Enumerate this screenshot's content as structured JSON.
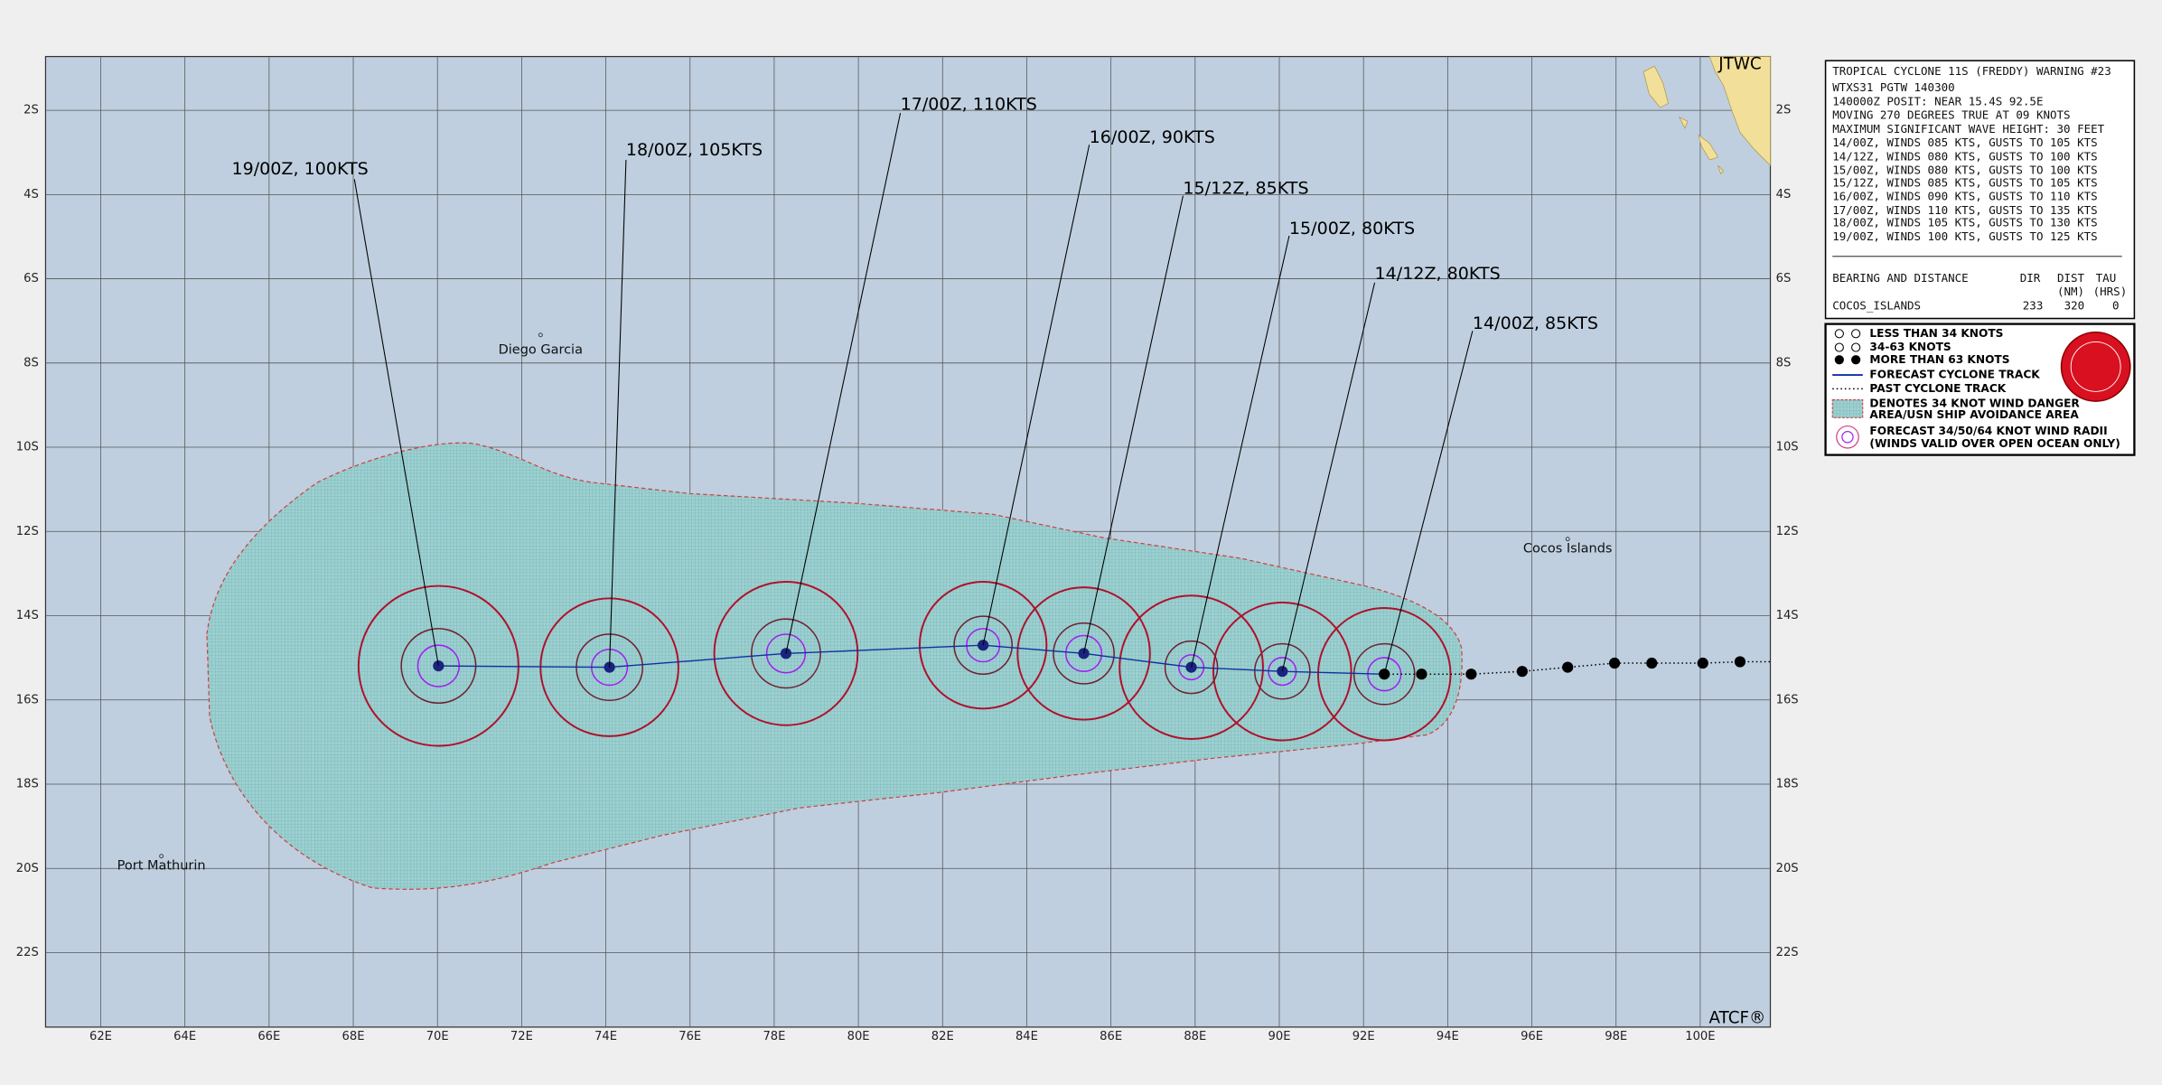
{
  "header": {
    "agency": "JTWC",
    "trademark": "ATCF®"
  },
  "map": {
    "lon_labels": [
      "62E",
      "64E",
      "66E",
      "68E",
      "70E",
      "72E",
      "74E",
      "76E",
      "78E",
      "80E",
      "82E",
      "84E",
      "86E",
      "88E",
      "90E",
      "92E",
      "94E",
      "96E",
      "98E",
      "100E"
    ],
    "lat_labels": [
      "2S",
      "4S",
      "6S",
      "8S",
      "10S",
      "12S",
      "14S",
      "16S",
      "18S",
      "20S",
      "22S"
    ],
    "places": [
      "Diego Garcia",
      "Cocos Islands",
      "Port Mathurin"
    ]
  },
  "forecast_labels": [
    "14/00Z, 85KTS",
    "14/12Z, 80KTS",
    "15/00Z, 80KTS",
    "15/12Z, 85KTS",
    "16/00Z, 90KTS",
    "17/00Z, 110KTS",
    "18/00Z, 105KTS",
    "19/00Z, 100KTS"
  ],
  "warning": {
    "lines": [
      "TROPICAL CYCLONE 11S (FREDDY) WARNING #23",
      "WTXS31 PGTW 140300",
      "140000Z POSIT: NEAR 15.4S 92.5E",
      "MOVING 270 DEGREES TRUE AT 09 KNOTS",
      "MAXIMUM SIGNIFICANT WAVE HEIGHT: 30 FEET",
      "14/00Z, WINDS 085 KTS, GUSTS TO 105 KTS",
      "14/12Z, WINDS 080 KTS, GUSTS TO 100 KTS",
      "15/00Z, WINDS 080 KTS, GUSTS TO 100 KTS",
      "15/12Z, WINDS 085 KTS, GUSTS TO 105 KTS",
      "16/00Z, WINDS 090 KTS, GUSTS TO 110 KTS",
      "17/00Z, WINDS 110 KTS, GUSTS TO 135 KTS",
      "18/00Z, WINDS 105 KTS, GUSTS TO 130 KTS",
      "19/00Z, WINDS 100 KTS, GUSTS TO 125 KTS"
    ],
    "table_header": [
      "BEARING AND DISTANCE",
      "DIR",
      "DIST",
      "TAU"
    ],
    "table_units": [
      "(NM)",
      "(HRS)"
    ],
    "rows": [
      [
        "COCOS_ISLANDS",
        "233",
        "320",
        "0"
      ]
    ]
  },
  "legend": [
    "LESS THAN 34 KNOTS",
    "34-63 KNOTS",
    "MORE THAN 63 KNOTS",
    "FORECAST CYCLONE TRACK",
    "PAST CYCLONE TRACK",
    "DENOTES 34 KNOT WIND DANGER",
    "AREA/USN SHIP AVOIDANCE AREA",
    "FORECAST 34/50/64 KNOT WIND RADII",
    "(WINDS VALID OVER OPEN OCEAN ONLY)"
  ]
}
